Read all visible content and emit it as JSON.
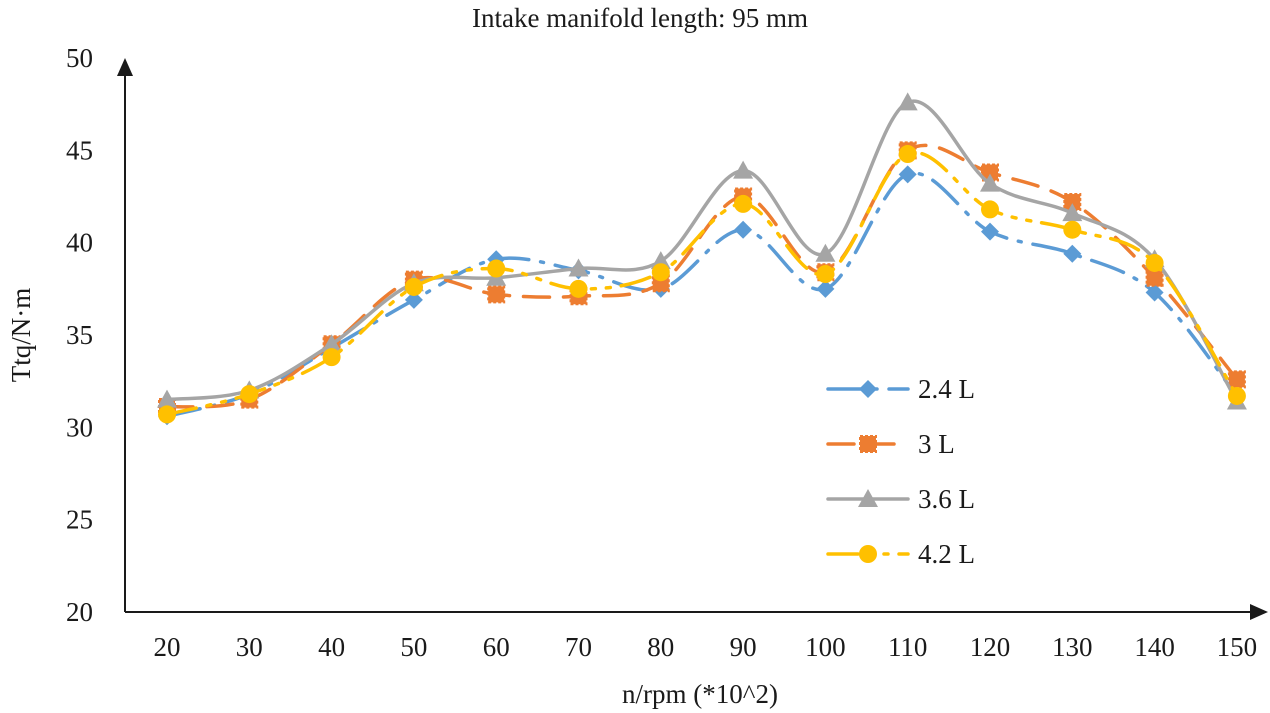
{
  "chart_data": {
    "type": "line",
    "title": "Intake manifold length: 95 mm",
    "xlabel": "n/rpm (*10^2)",
    "ylabel": "Ttq/N·m",
    "categories": [
      "20",
      "30",
      "40",
      "50",
      "60",
      "70",
      "80",
      "90",
      "100",
      "110",
      "120",
      "130",
      "140",
      "150"
    ],
    "ylim": [
      20,
      50
    ],
    "yticks": [
      "20",
      "25",
      "30",
      "35",
      "40",
      "45",
      "50"
    ],
    "grid": false,
    "legend_position": "right",
    "series": [
      {
        "name": "2.4 L",
        "color": "#5b9bd5",
        "marker": "diamond",
        "values": [
          30.6,
          31.8,
          34.3,
          36.9,
          39.1,
          38.5,
          37.5,
          40.7,
          37.5,
          43.7,
          40.6,
          39.4,
          37.3,
          31.7
        ]
      },
      {
        "name": "3 L",
        "color": "#ed7d31",
        "marker": "square",
        "values": [
          31.1,
          31.5,
          34.5,
          38.0,
          37.2,
          37.1,
          37.8,
          42.5,
          38.4,
          45.0,
          43.8,
          42.2,
          38.1,
          32.6
        ]
      },
      {
        "name": "3.6 L",
        "color": "#a5a5a5",
        "marker": "triangle",
        "values": [
          31.5,
          32.0,
          34.5,
          37.8,
          38.1,
          38.6,
          39.0,
          43.9,
          39.4,
          47.6,
          43.2,
          41.6,
          39.1,
          31.4
        ]
      },
      {
        "name": "4.2 L",
        "color": "#ffc000",
        "marker": "circle",
        "values": [
          30.7,
          31.8,
          33.8,
          37.6,
          38.6,
          37.5,
          38.4,
          42.1,
          38.3,
          44.8,
          41.8,
          40.7,
          38.9,
          31.7
        ]
      }
    ]
  }
}
